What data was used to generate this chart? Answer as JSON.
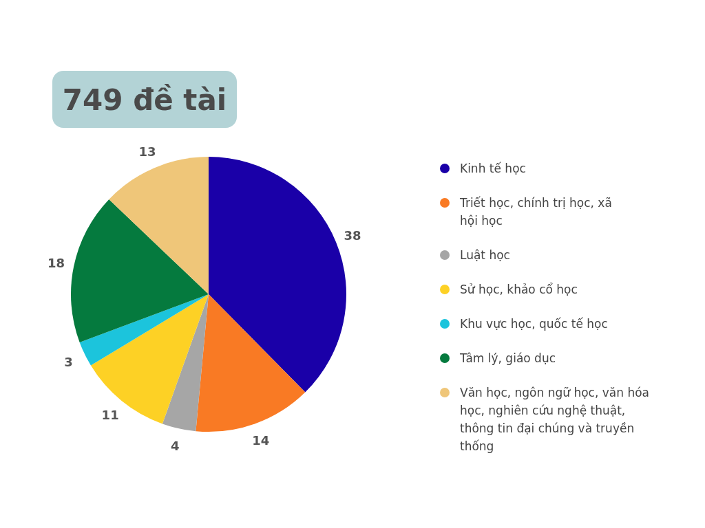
{
  "chart_data": {
    "type": "pie",
    "title": "749 đề tài",
    "categories": [
      "Kinh tế học",
      "Triết học, chính trị học, xã hội học",
      "Luật học",
      "Sử học, khảo cổ học",
      "Khu vực học, quốc tế học",
      "Tâm lý, giáo dục",
      "Văn học, ngôn ngữ học, văn hóa học, nghiên cứu nghệ thuật, thông tin đại chúng và truyền thống"
    ],
    "values": [
      38,
      14,
      4,
      11,
      3,
      18,
      13
    ],
    "colors": [
      "#1a00a8",
      "#f97a24",
      "#a6a6a6",
      "#fdd125",
      "#1cc4dc",
      "#057a3e",
      "#efc679"
    ],
    "data_labels": true,
    "legend": "right"
  }
}
